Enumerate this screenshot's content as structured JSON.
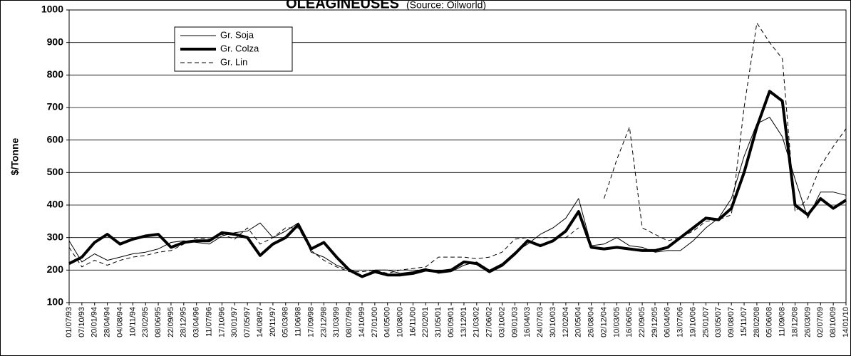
{
  "chart_data": {
    "type": "line",
    "title": "OLEAGINEUSES",
    "subtitle": "(Source: Oilworld)",
    "y_label": "$/Tonne",
    "categories": [
      "01/07/93",
      "07/10/93",
      "20/01/94",
      "28/04/94",
      "04/08/94",
      "10/11/94",
      "23/02/95",
      "08/06/95",
      "22/09/95",
      "28/12/95",
      "03/04/96",
      "11/07/96",
      "17/10/96",
      "30/01/97",
      "07/05/97",
      "14/08/97",
      "20/11/97",
      "05/03/98",
      "11/06/98",
      "17/09/98",
      "23/12/98",
      "31/03/99",
      "08/07/99",
      "14/10/99",
      "27/01/00",
      "04/05/00",
      "10/08/00",
      "16/11/00",
      "22/02/01",
      "31/05/01",
      "06/09/01",
      "13/12/01",
      "21/03/02",
      "27/06/02",
      "03/10/02",
      "09/01/03",
      "16/04/03",
      "24/07/03",
      "30/10/03",
      "12/02/04",
      "20/05/04",
      "26/08/04",
      "02/12/04",
      "10/03/05",
      "16/06/05",
      "22/09/05",
      "29/12/05",
      "06/04/06",
      "13/07/06",
      "19/10/06",
      "25/01/07",
      "03/05/07",
      "09/08/07",
      "15/11/07",
      "28/02/08",
      "05/06/08",
      "11/09/08",
      "18/12/08",
      "26/03/09",
      "02/07/09",
      "08/10/09",
      "14/01/10"
    ],
    "series": [
      {
        "name": "Gr. Soja",
        "color": "#000000",
        "width": 1,
        "dash": false,
        "values": [
          290,
          225,
          250,
          230,
          240,
          250,
          255,
          265,
          285,
          290,
          285,
          280,
          305,
          315,
          320,
          345,
          300,
          320,
          345,
          255,
          240,
          215,
          200,
          180,
          200,
          200,
          190,
          195,
          205,
          190,
          195,
          215,
          225,
          200,
          220,
          255,
          280,
          310,
          330,
          360,
          420,
          275,
          280,
          300,
          275,
          270,
          255,
          260,
          260,
          290,
          330,
          360,
          420,
          550,
          650,
          670,
          610,
          480,
          360,
          440,
          440,
          430
        ]
      },
      {
        "name": "Gr. Colza",
        "color": "#000000",
        "width": 4,
        "dash": false,
        "values": [
          220,
          240,
          285,
          310,
          280,
          295,
          305,
          310,
          270,
          285,
          290,
          290,
          315,
          310,
          300,
          245,
          280,
          300,
          340,
          265,
          285,
          240,
          200,
          180,
          195,
          185,
          185,
          190,
          200,
          195,
          200,
          225,
          220,
          195,
          215,
          250,
          290,
          275,
          290,
          320,
          380,
          270,
          265,
          270,
          265,
          260,
          260,
          270,
          300,
          330,
          360,
          355,
          390,
          500,
          640,
          750,
          720,
          400,
          370,
          420,
          390,
          415
        ]
      },
      {
        "name": "Gr. Lin",
        "color": "#000000",
        "width": 1,
        "dash": true,
        "values": [
          270,
          210,
          230,
          215,
          230,
          240,
          245,
          255,
          260,
          280,
          300,
          295,
          310,
          295,
          330,
          280,
          300,
          330,
          330,
          260,
          230,
          210,
          195,
          195,
          200,
          190,
          200,
          205,
          210,
          240,
          240,
          240,
          235,
          240,
          255,
          295,
          300,
          300,
          300,
          300,
          330,
          null,
          420,
          540,
          640,
          330,
          310,
          290,
          300,
          320,
          350,
          355,
          370,
          700,
          960,
          900,
          850,
          380,
          420,
          520,
          580,
          635
        ]
      }
    ],
    "ylim": [
      100,
      1000
    ],
    "yticks": [
      100,
      200,
      300,
      400,
      500,
      600,
      700,
      800,
      900,
      1000
    ],
    "grid": true,
    "legend": "upper left"
  }
}
